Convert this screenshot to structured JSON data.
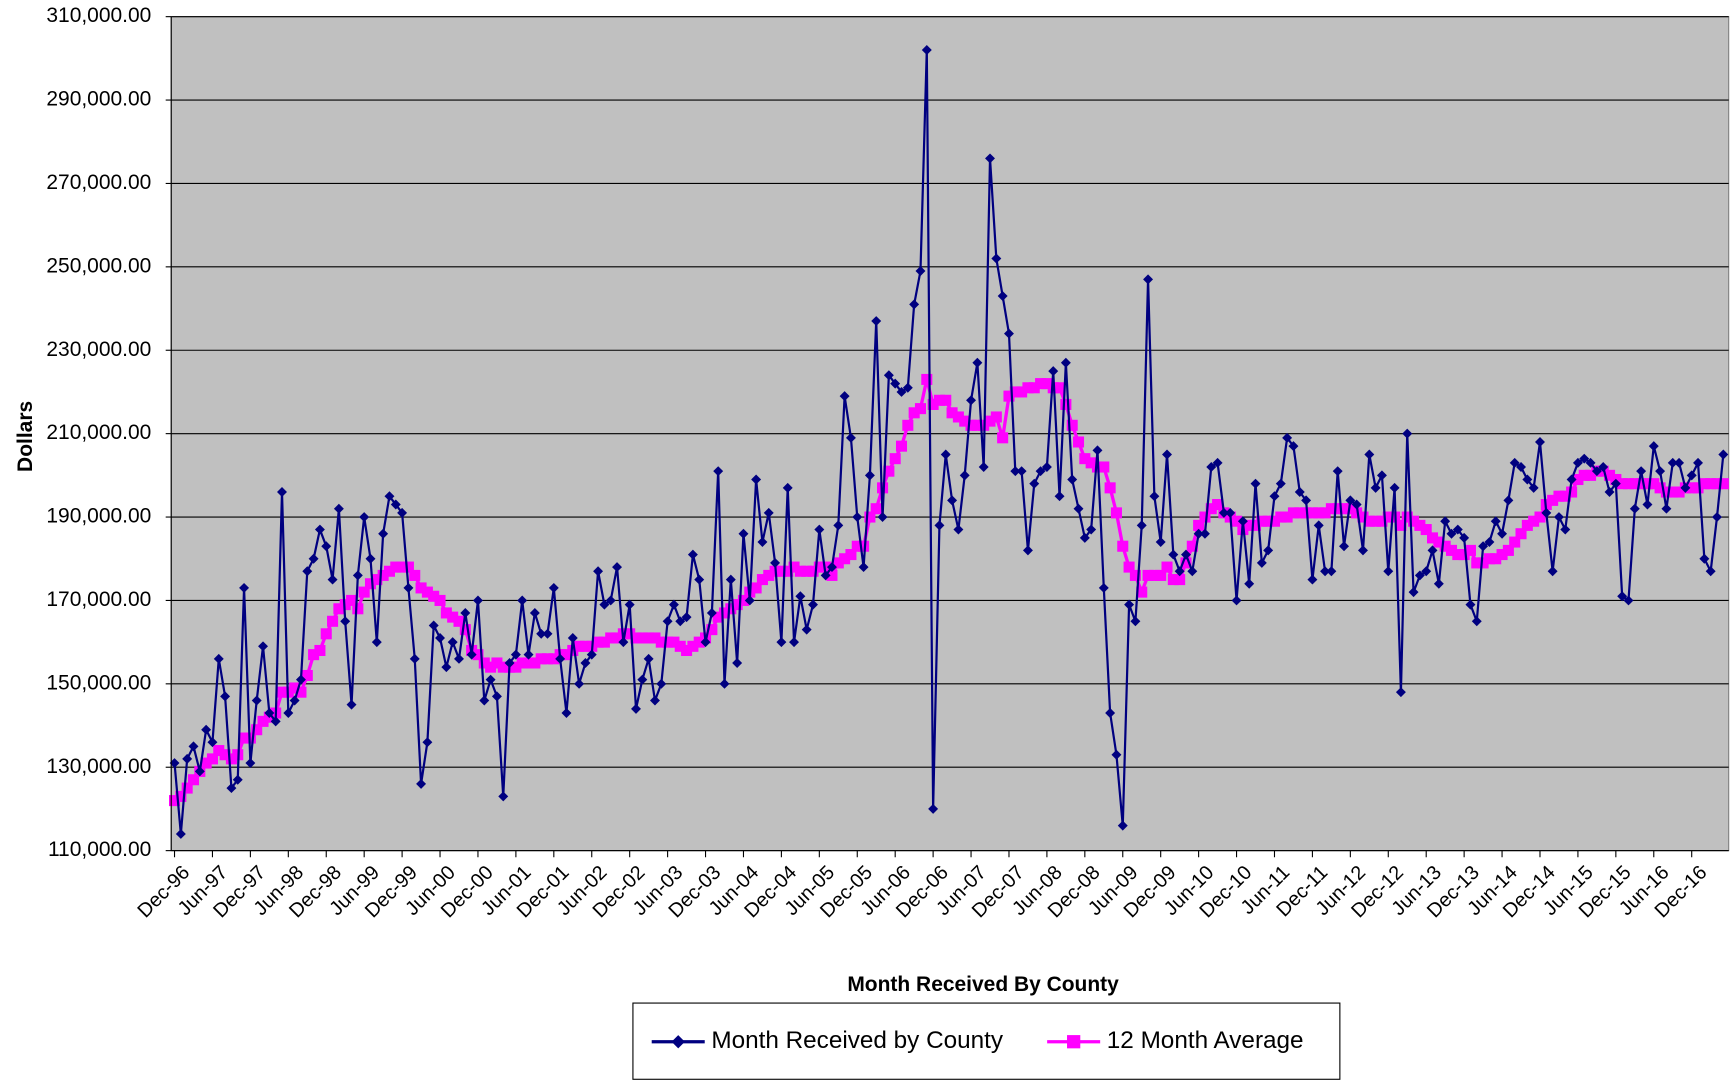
{
  "chart_data": {
    "type": "line",
    "y_label": "Dollars",
    "x_label": "Month Received By County",
    "categories": [
      "Dec-96",
      null,
      null,
      null,
      null,
      null,
      "Jun-97",
      null,
      null,
      null,
      null,
      null,
      "Dec-97",
      null,
      null,
      null,
      null,
      null,
      "Jun-98",
      null,
      null,
      null,
      null,
      null,
      "Dec-98",
      null,
      null,
      null,
      null,
      null,
      "Jun-99",
      null,
      null,
      null,
      null,
      null,
      "Dec-99",
      null,
      null,
      null,
      null,
      null,
      "Jun-00",
      null,
      null,
      null,
      null,
      null,
      "Dec-00",
      null,
      null,
      null,
      null,
      null,
      "Jun-01",
      null,
      null,
      null,
      null,
      null,
      "Dec-01",
      null,
      null,
      null,
      null,
      null,
      "Jun-02",
      null,
      null,
      null,
      null,
      null,
      "Dec-02",
      null,
      null,
      null,
      null,
      null,
      "Jun-03",
      null,
      null,
      null,
      null,
      null,
      "Dec-03",
      null,
      null,
      null,
      null,
      null,
      "Jun-04",
      null,
      null,
      null,
      null,
      null,
      "Dec-04",
      null,
      null,
      null,
      null,
      null,
      "Jun-05",
      null,
      null,
      null,
      null,
      null,
      "Dec-05",
      null,
      null,
      null,
      null,
      null,
      "Jun-06",
      null,
      null,
      null,
      null,
      null,
      "Dec-06",
      null,
      null,
      null,
      null,
      null,
      "Jun-07",
      null,
      null,
      null,
      null,
      null,
      "Dec-07",
      null,
      null,
      null,
      null,
      null,
      "Jun-08",
      null,
      null,
      null,
      null,
      null,
      "Dec-08",
      null,
      null,
      null,
      null,
      null,
      "Jun-09",
      null,
      null,
      null,
      null,
      null,
      "Dec-09",
      null,
      null,
      null,
      null,
      null,
      "Jun-10",
      null,
      null,
      null,
      null,
      null,
      "Dec-10",
      null,
      null,
      null,
      null,
      null,
      "Jun-11",
      null,
      null,
      null,
      null,
      null,
      "Dec-11",
      null,
      null,
      null,
      null,
      null,
      "Jun-12",
      null,
      null,
      null,
      null,
      null,
      "Dec-12",
      null,
      null,
      null,
      null,
      null,
      "Jun-13",
      null,
      null,
      null,
      null,
      null,
      "Dec-13",
      null,
      null,
      null,
      null,
      null,
      "Jun-14",
      null,
      null,
      null,
      null,
      null,
      "Dec-14",
      null,
      null,
      null,
      null,
      null,
      "Jun-15",
      null,
      null,
      null,
      null,
      null,
      "Dec-15",
      null,
      null,
      null,
      null,
      null,
      "Jun-16",
      null,
      null,
      null,
      null,
      null,
      "Dec-16",
      null,
      null,
      null,
      null,
      null
    ],
    "series": [
      {
        "name": "Month Received by County",
        "color": "#000080",
        "marker": "diamond",
        "values": [
          131000,
          114000,
          132000,
          135000,
          129000,
          139000,
          136000,
          156000,
          147000,
          125000,
          127000,
          173000,
          131000,
          146000,
          159000,
          143000,
          141000,
          196000,
          143000,
          146000,
          151000,
          177000,
          180000,
          187000,
          183000,
          175000,
          192000,
          165000,
          145000,
          176000,
          190000,
          180000,
          160000,
          186000,
          195000,
          193000,
          191000,
          173000,
          156000,
          126000,
          136000,
          164000,
          161000,
          154000,
          160000,
          156000,
          167000,
          157000,
          170000,
          146000,
          151000,
          147000,
          123000,
          155000,
          157000,
          170000,
          157000,
          167000,
          162000,
          162000,
          173000,
          156000,
          143000,
          161000,
          150000,
          155000,
          157000,
          177000,
          169000,
          170000,
          178000,
          160000,
          169000,
          144000,
          151000,
          156000,
          146000,
          150000,
          165000,
          169000,
          165000,
          166000,
          181000,
          175000,
          160000,
          167000,
          201000,
          150000,
          175000,
          155000,
          186000,
          170000,
          199000,
          184000,
          191000,
          179000,
          160000,
          197000,
          160000,
          171000,
          163000,
          169000,
          187000,
          176000,
          178000,
          188000,
          219000,
          209000,
          190000,
          178000,
          200000,
          237000,
          190000,
          224000,
          222000,
          220000,
          221000,
          241000,
          249000,
          302000,
          120000,
          188000,
          205000,
          194000,
          187000,
          200000,
          218000,
          227000,
          202000,
          276000,
          252000,
          243000,
          234000,
          201000,
          201000,
          182000,
          198000,
          201000,
          202000,
          225000,
          195000,
          227000,
          199000,
          192000,
          185000,
          187000,
          206000,
          173000,
          143000,
          133000,
          116000,
          169000,
          165000,
          188000,
          247000,
          195000,
          184000,
          205000,
          181000,
          177000,
          181000,
          177000,
          186000,
          186000,
          202000,
          203000,
          191000,
          191000,
          170000,
          189000,
          174000,
          198000,
          179000,
          182000,
          195000,
          198000,
          209000,
          207000,
          196000,
          194000,
          175000,
          188000,
          177000,
          177000,
          201000,
          183000,
          194000,
          193000,
          182000,
          205000,
          197000,
          200000,
          177000,
          197000,
          148000,
          210000,
          172000,
          176000,
          177000,
          182000,
          174000,
          189000,
          186000,
          187000,
          185000,
          169000,
          165000,
          183000,
          184000,
          189000,
          186000,
          194000,
          203000,
          202000,
          199000,
          197000,
          208000,
          191000,
          177000,
          190000,
          187000,
          199000,
          203000,
          204000,
          203000,
          201000,
          202000,
          196000,
          198000,
          171000,
          170000,
          192000,
          201000,
          193000,
          207000,
          201000,
          192000,
          203000,
          203000,
          197000,
          200000,
          203000,
          180000,
          177000,
          190000,
          205000
        ]
      },
      {
        "name": "12 Month Average",
        "color": "#ff00ff",
        "marker": "square",
        "values": [
          122000,
          123000,
          125000,
          127000,
          129000,
          131000,
          132000,
          134000,
          133000,
          132000,
          133000,
          137000,
          137000,
          139000,
          141000,
          142000,
          143000,
          148000,
          148000,
          149000,
          148000,
          152000,
          157000,
          158000,
          162000,
          165000,
          168000,
          169000,
          170000,
          168000,
          172000,
          174000,
          175000,
          176000,
          177000,
          178000,
          178000,
          178000,
          176000,
          173000,
          172000,
          171000,
          170000,
          167000,
          166000,
          165000,
          163000,
          158000,
          157000,
          155000,
          154000,
          155000,
          154000,
          154000,
          154000,
          155000,
          155000,
          155000,
          156000,
          156000,
          156000,
          157000,
          157000,
          158000,
          159000,
          159000,
          159000,
          160000,
          160000,
          161000,
          161000,
          162000,
          162000,
          161000,
          161000,
          161000,
          161000,
          160000,
          160000,
          160000,
          159000,
          158000,
          159000,
          160000,
          161000,
          163000,
          166000,
          167000,
          168000,
          169000,
          170000,
          172000,
          173000,
          175000,
          176000,
          177000,
          177000,
          177000,
          178000,
          177000,
          177000,
          177000,
          178000,
          178000,
          176000,
          179000,
          180000,
          181000,
          183000,
          183000,
          190000,
          192000,
          197000,
          201000,
          204000,
          207000,
          212000,
          215000,
          216000,
          223000,
          217000,
          218000,
          218000,
          215000,
          214000,
          213000,
          212000,
          212000,
          212000,
          213000,
          214000,
          209000,
          219000,
          220000,
          220000,
          221000,
          221000,
          222000,
          222000,
          221000,
          221000,
          217000,
          212000,
          208000,
          204000,
          203000,
          202000,
          202000,
          197000,
          191000,
          183000,
          178000,
          176000,
          172000,
          176000,
          176000,
          176000,
          178000,
          175000,
          175000,
          179000,
          183000,
          188000,
          190000,
          192000,
          193000,
          191000,
          190000,
          189000,
          187000,
          188000,
          188000,
          189000,
          189000,
          189000,
          190000,
          190000,
          191000,
          191000,
          191000,
          191000,
          191000,
          191000,
          192000,
          192000,
          192000,
          192000,
          191000,
          190000,
          189000,
          189000,
          189000,
          190000,
          190000,
          188000,
          190000,
          189000,
          188000,
          187000,
          185000,
          184000,
          183000,
          182000,
          181000,
          181000,
          182000,
          179000,
          179000,
          180000,
          180000,
          181000,
          182000,
          184000,
          186000,
          188000,
          189000,
          190000,
          193000,
          194000,
          195000,
          195000,
          196000,
          199000,
          200000,
          200000,
          201000,
          201000,
          200000,
          199000,
          198000,
          198000,
          198000,
          198000,
          198000,
          198000,
          197000,
          196000,
          196000,
          196000,
          197000,
          197000,
          197000,
          198000,
          198000,
          198000,
          198000
        ]
      }
    ],
    "ylim": [
      110000,
      310000
    ],
    "yticks": [
      {
        "value": 110000,
        "label": "110,000.00"
      },
      {
        "value": 130000,
        "label": "130,000.00"
      },
      {
        "value": 150000,
        "label": "150,000.00"
      },
      {
        "value": 170000,
        "label": "170,000.00"
      },
      {
        "value": 190000,
        "label": "190,000.00"
      },
      {
        "value": 210000,
        "label": "210,000.00"
      },
      {
        "value": 230000,
        "label": "230,000.00"
      },
      {
        "value": 250000,
        "label": "250,000.00"
      },
      {
        "value": 270000,
        "label": "270,000.00"
      },
      {
        "value": 290000,
        "label": "290,000.00"
      },
      {
        "value": 310000,
        "label": "310,000.00"
      }
    ],
    "grid": true,
    "plot_background": "#c0c0c0",
    "legend": "bottom"
  }
}
